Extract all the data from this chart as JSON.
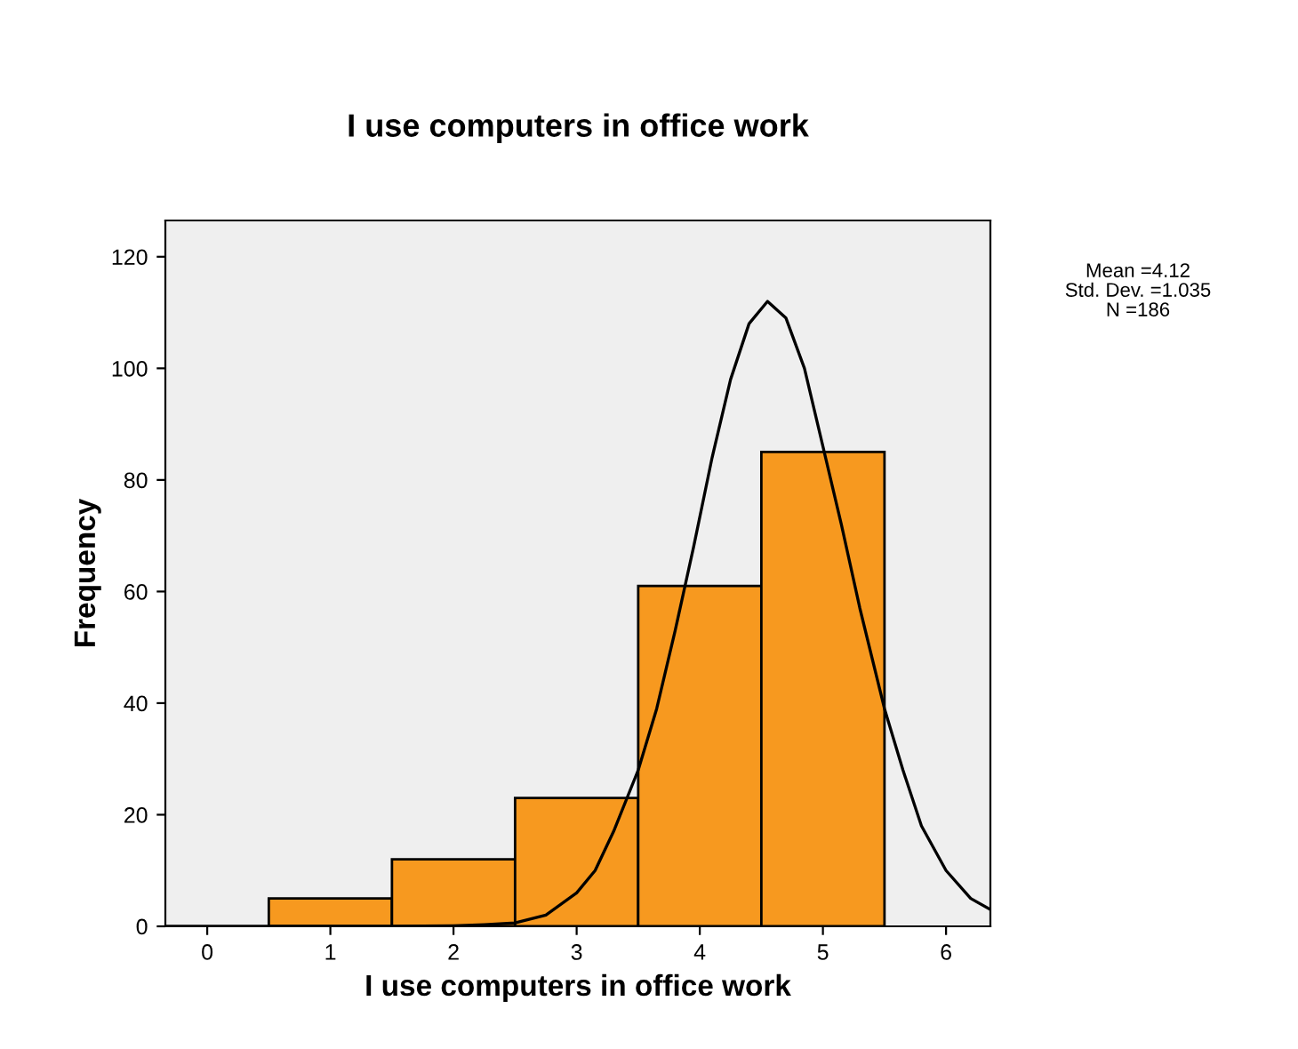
{
  "chart_data": {
    "type": "histogram",
    "title": "I use computers in office work",
    "xlabel": "I use computers in office work",
    "ylabel": "Frequency",
    "bins": [
      0.5,
      1.5,
      2.5,
      3.5,
      4.5,
      5.5
    ],
    "values": [
      5,
      12,
      23,
      61,
      85
    ],
    "color": "#f7991f",
    "series": [
      {
        "type": "line",
        "color": "#000000",
        "x": [
          -0.34,
          1,
          1.5,
          2,
          2.25,
          2.5,
          2.75,
          3,
          3.15,
          3.3,
          3.5,
          3.65,
          3.8,
          3.95,
          4.1,
          4.25,
          4.4,
          4.55,
          4.7,
          4.85,
          5,
          5.15,
          5.3,
          5.5,
          5.65,
          5.8,
          6,
          6.2,
          6.36
        ],
        "values": [
          0,
          0,
          0,
          0.1,
          0.3,
          0.6,
          2,
          6,
          10,
          17,
          28,
          39,
          53,
          68,
          84,
          98,
          108,
          112,
          109,
          100,
          86,
          72,
          57,
          39,
          28,
          18,
          10,
          5,
          3
        ]
      }
    ],
    "annotations": [
      "Mean =4.12",
      "Std. Dev. =1.035",
      "N =186"
    ],
    "xlim": [
      -0.34,
      6.36
    ],
    "ylim": [
      0,
      126.5
    ],
    "xticks": [
      0,
      1,
      2,
      3,
      4,
      5,
      6
    ],
    "yticks": [
      0,
      20,
      40,
      60,
      80,
      100,
      120
    ],
    "grid": false,
    "legend": false
  }
}
